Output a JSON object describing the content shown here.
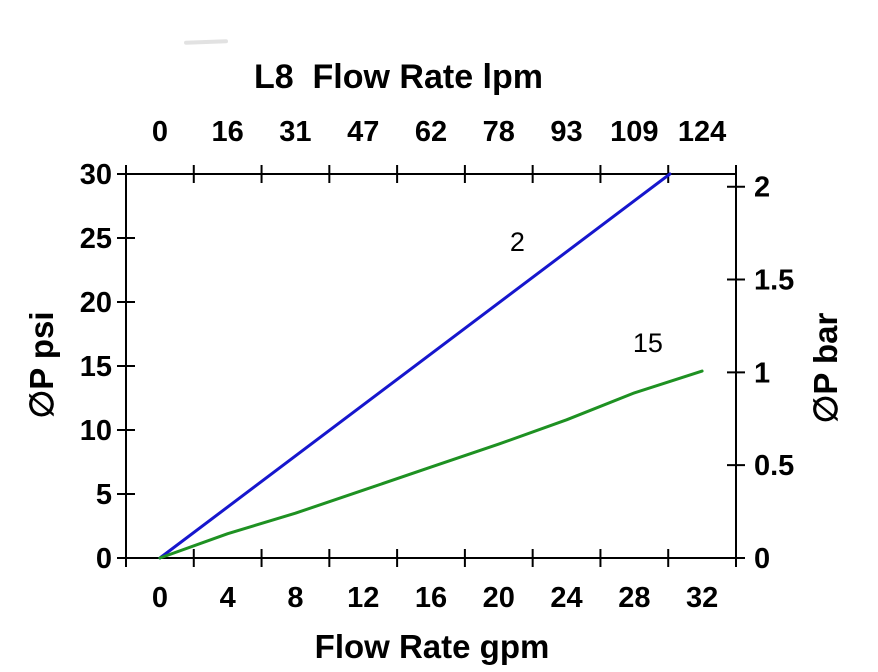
{
  "colors": {
    "background": "#ffffff",
    "axis": "#000000",
    "text": "#000000",
    "series_2": "#1616cd",
    "series_15": "#1e9122"
  },
  "chart_data": {
    "type": "line",
    "title": "L8  Flow Rate lpm",
    "x_bottom": {
      "label": "Flow Rate gpm",
      "ticks": [
        "0",
        "4",
        "8",
        "12",
        "16",
        "20",
        "24",
        "28",
        "32"
      ],
      "values": [
        0,
        4,
        8,
        12,
        16,
        20,
        24,
        28,
        32
      ],
      "style": "labels centered between boundary tick marks"
    },
    "x_top": {
      "label": "L8  Flow Rate lpm",
      "ticks": [
        "0",
        "16",
        "31",
        "47",
        "62",
        "78",
        "93",
        "109",
        "124"
      ],
      "unit": "lpm"
    },
    "y_left": {
      "label": "∅P psi",
      "ticks": [
        "0",
        "5",
        "10",
        "15",
        "20",
        "25",
        "30"
      ],
      "tick_values": [
        0,
        5,
        10,
        15,
        20,
        25,
        30
      ],
      "range": [
        0,
        30
      ]
    },
    "y_right": {
      "label": "∅P bar",
      "ticks": [
        "0",
        "0.5",
        "1",
        "1.5",
        "2"
      ],
      "tick_values": [
        0,
        0.5,
        1,
        1.5,
        2
      ],
      "psi_per_bar": 14.5038,
      "range_bar": [
        0,
        2.07
      ]
    },
    "grid": false,
    "legend": "inline labels on curves",
    "series": [
      {
        "name": "2",
        "color": "#1616cd",
        "points_gpm_psi": [
          [
            0,
            0
          ],
          [
            30.1,
            30
          ]
        ],
        "label_at_gpm_psi": [
          21.1,
          24.7
        ]
      },
      {
        "name": "15",
        "color": "#1e9122",
        "points_gpm_psi": [
          [
            0,
            0
          ],
          [
            4,
            1.9
          ],
          [
            8,
            3.5
          ],
          [
            12,
            5.3
          ],
          [
            16,
            7.1
          ],
          [
            20,
            8.9
          ],
          [
            24,
            10.8
          ],
          [
            28,
            12.9
          ],
          [
            32,
            14.6
          ]
        ],
        "label_at_gpm_psi": [
          28.8,
          16.8
        ]
      }
    ]
  }
}
